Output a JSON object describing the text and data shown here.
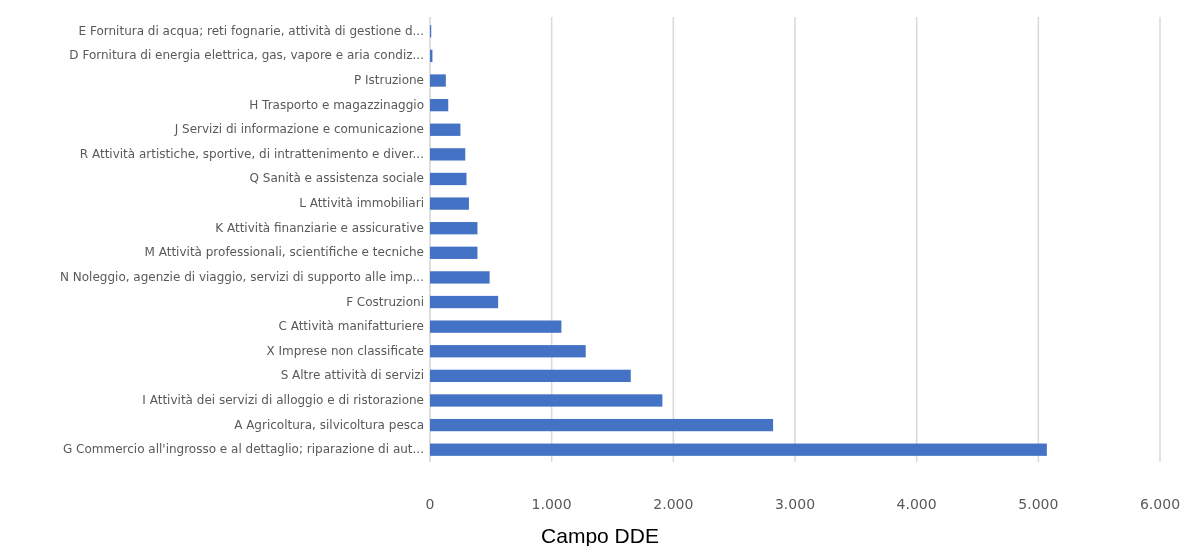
{
  "chart_data": {
    "type": "bar",
    "orientation": "horizontal",
    "xlabel": "Campo DDE",
    "categories": [
      "E Fornitura di acqua; reti fognarie, attività di gestione d...",
      "D Fornitura di energia elettrica, gas, vapore e aria condiz...",
      "P Istruzione",
      "H Trasporto e magazzinaggio",
      "J Servizi di informazione e comunicazione",
      "R Attività artistiche, sportive, di intrattenimento e diver...",
      "Q Sanità e assistenza sociale",
      "L Attività immobiliari",
      "K Attività finanziarie e assicurative",
      "M Attività professionali, scientifiche e tecniche",
      "N Noleggio, agenzie di viaggio, servizi di supporto alle imp...",
      "F Costruzioni",
      "C Attività manifatturiere",
      "X Imprese non classificate",
      "S Altre attività di servizi",
      "I Attività dei servizi di alloggio e di ristorazione",
      "A Agricoltura, silvicoltura pesca",
      "G Commercio all'ingrosso e al dettaglio; riparazione di aut..."
    ],
    "values": [
      10,
      20,
      130,
      150,
      250,
      290,
      300,
      320,
      390,
      390,
      490,
      560,
      1080,
      1280,
      1650,
      1910,
      2820,
      5070
    ],
    "color": "#4472c4",
    "xlim": [
      0,
      6000
    ],
    "xticks": [
      {
        "value": 0,
        "label": "0"
      },
      {
        "value": 1000,
        "label": "1.000"
      },
      {
        "value": 2000,
        "label": "2.000"
      },
      {
        "value": 3000,
        "label": "3.000"
      },
      {
        "value": 4000,
        "label": "4.000"
      },
      {
        "value": 5000,
        "label": "5.000"
      },
      {
        "value": 6000,
        "label": "6.000"
      }
    ],
    "grid": "x"
  }
}
